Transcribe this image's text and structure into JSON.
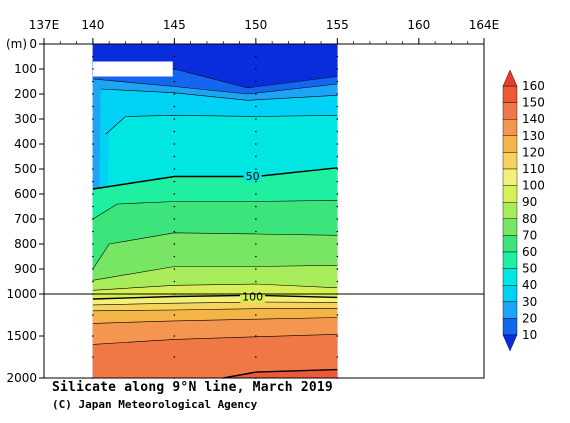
{
  "chart_data": {
    "type": "heatmap",
    "title": "Silicate along 9°N line, March 2019",
    "credit": "(C) Japan Meteorological Agency",
    "x_axis": {
      "ticks": [
        "137E",
        "140",
        "145",
        "150",
        "155",
        "160",
        "164E"
      ],
      "range": [
        137,
        164
      ],
      "unit": "°E"
    },
    "y_axis": {
      "unit_label": "(m)",
      "ticks_upper": [
        "0",
        "100",
        "200",
        "300",
        "400",
        "500",
        "600",
        "700",
        "800",
        "900",
        "1000"
      ],
      "ticks_lower": [
        "1500",
        "2000"
      ],
      "range": [
        0,
        2000
      ],
      "break_at": 1000,
      "scale": "0-1000 m linear (upper panel), 1000-2000 m linear (lower panel, compressed)"
    },
    "data_extent": {
      "lon": [
        140,
        155
      ]
    },
    "stations_lon": [
      140,
      145,
      150,
      155
    ],
    "contour_labels": [
      {
        "value": "50",
        "lon": 149.8,
        "depth": 528
      },
      {
        "value": "100",
        "lon": 149.8,
        "depth": 1030
      }
    ],
    "isolines": [
      {
        "value": 10,
        "points": [
          [
            140,
            90
          ],
          [
            145,
            100
          ],
          [
            149.5,
            175
          ],
          [
            155,
            130
          ]
        ]
      },
      {
        "value": 20,
        "points": [
          [
            140,
            140
          ],
          [
            145,
            170
          ],
          [
            149.5,
            200
          ],
          [
            155,
            160
          ]
        ]
      },
      {
        "value": 30,
        "points": [
          [
            140.5,
            180
          ],
          [
            145,
            195
          ],
          [
            149.5,
            225
          ],
          [
            155,
            205
          ]
        ]
      },
      {
        "value": 40,
        "points": [
          [
            140.8,
            360
          ],
          [
            142,
            290
          ],
          [
            145,
            285
          ],
          [
            150,
            290
          ],
          [
            155,
            285
          ]
        ]
      },
      {
        "value": 50,
        "points": [
          [
            140,
            580
          ],
          [
            145,
            530
          ],
          [
            150,
            530
          ],
          [
            155,
            495
          ]
        ]
      },
      {
        "value": 60,
        "points": [
          [
            140,
            700
          ],
          [
            141.5,
            640
          ],
          [
            145,
            630
          ],
          [
            150,
            630
          ],
          [
            155,
            625
          ]
        ]
      },
      {
        "value": 70,
        "points": [
          [
            140,
            900
          ],
          [
            141,
            800
          ],
          [
            145,
            755
          ],
          [
            150,
            760
          ],
          [
            155,
            765
          ]
        ]
      },
      {
        "value": 80,
        "points": [
          [
            140,
            945
          ],
          [
            145,
            890
          ],
          [
            150,
            890
          ],
          [
            155,
            885
          ]
        ]
      },
      {
        "value": 90,
        "points": [
          [
            140,
            985
          ],
          [
            145,
            965
          ],
          [
            150,
            960
          ],
          [
            155,
            975
          ]
        ]
      },
      {
        "value": 100,
        "points": [
          [
            140,
            1060
          ],
          [
            145,
            1030
          ],
          [
            150,
            1015
          ],
          [
            155,
            1040
          ]
        ]
      },
      {
        "value": 110,
        "points": [
          [
            140,
            1130
          ],
          [
            145,
            1110
          ],
          [
            150,
            1095
          ],
          [
            155,
            1100
          ]
        ]
      },
      {
        "value": 120,
        "points": [
          [
            140,
            1200
          ],
          [
            145,
            1190
          ],
          [
            150,
            1175
          ],
          [
            155,
            1170
          ]
        ]
      },
      {
        "value": 130,
        "points": [
          [
            140,
            1350
          ],
          [
            145,
            1320
          ],
          [
            150,
            1300
          ],
          [
            155,
            1280
          ]
        ]
      },
      {
        "value": 140,
        "points": [
          [
            140,
            1600
          ],
          [
            145,
            1540
          ],
          [
            150,
            1510
          ],
          [
            155,
            1480
          ]
        ]
      },
      {
        "value": 150,
        "points": [
          [
            148,
            2000
          ],
          [
            150,
            1930
          ],
          [
            155,
            1900
          ]
        ]
      }
    ],
    "masked_region": {
      "lon": [
        140,
        144.9
      ],
      "depth": [
        70,
        130
      ]
    },
    "colorbar": {
      "levels": [
        10,
        20,
        30,
        40,
        50,
        60,
        70,
        80,
        90,
        100,
        110,
        120,
        130,
        140,
        150,
        160
      ],
      "labels": [
        "10",
        "20",
        "30",
        "40",
        "50",
        "60",
        "70",
        "80",
        "90",
        "100",
        "110",
        "120",
        "130",
        "140",
        "150",
        "160"
      ],
      "colors": [
        "#0a2ddc",
        "#1466f0",
        "#1ea4f5",
        "#00d2f5",
        "#00e6e0",
        "#1ef0a0",
        "#3ce47c",
        "#78e664",
        "#a8ec5c",
        "#d8f058",
        "#f2f078",
        "#f5d35c",
        "#f5b446",
        "#f59650",
        "#f07846",
        "#ec5a37",
        "#e63c2d"
      ]
    }
  }
}
